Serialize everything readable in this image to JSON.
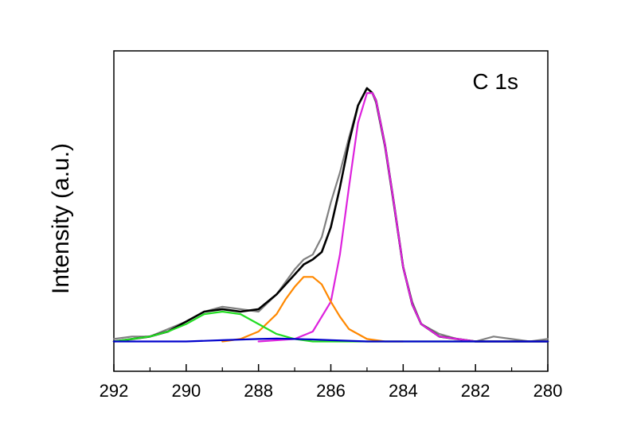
{
  "chart_data": {
    "type": "line",
    "title": "",
    "annotation": "C 1s",
    "xlabel": "",
    "ylabel": "Intensity (a.u.)",
    "xlim": [
      292,
      280
    ],
    "x_reversed": true,
    "ylim": [
      -0.12,
      1.17
    ],
    "x_ticks": [
      292,
      290,
      288,
      286,
      284,
      282,
      280
    ],
    "y_ticks_shown": false,
    "grid": false,
    "legend": "none",
    "series": [
      {
        "color": "#808080",
        "role": "measured",
        "x": [
          292.0,
          291.5,
          291.0,
          290.5,
          290.0,
          289.5,
          289.0,
          288.5,
          288.0,
          287.5,
          287.0,
          286.75,
          286.5,
          286.25,
          286.0,
          285.75,
          285.5,
          285.25,
          285.0,
          284.85,
          284.75,
          284.5,
          284.25,
          284.0,
          283.75,
          283.5,
          283.0,
          282.5,
          282.0,
          281.5,
          281.0,
          280.5,
          280.0
        ],
        "y": [
          0.01,
          0.02,
          0.02,
          0.05,
          0.08,
          0.12,
          0.14,
          0.13,
          0.12,
          0.19,
          0.29,
          0.33,
          0.35,
          0.42,
          0.56,
          0.68,
          0.82,
          0.95,
          1.02,
          1.0,
          0.96,
          0.78,
          0.54,
          0.3,
          0.16,
          0.07,
          0.03,
          0.01,
          0.0,
          0.02,
          0.01,
          0.0,
          0.01
        ]
      },
      {
        "color": "#000000",
        "role": "envelope",
        "x": [
          292.0,
          291.5,
          291.0,
          290.5,
          290.0,
          289.5,
          289.0,
          288.5,
          288.0,
          287.5,
          287.0,
          286.75,
          286.5,
          286.25,
          286.0,
          285.75,
          285.5,
          285.25,
          285.0,
          284.85,
          284.75,
          284.5,
          284.25,
          284.0,
          283.75,
          283.5,
          283.0,
          282.5,
          282.0,
          281.5,
          281.0,
          280.5,
          280.0
        ],
        "y": [
          0.0,
          0.01,
          0.02,
          0.04,
          0.08,
          0.12,
          0.13,
          0.12,
          0.13,
          0.19,
          0.27,
          0.31,
          0.33,
          0.36,
          0.46,
          0.62,
          0.8,
          0.95,
          1.02,
          1.0,
          0.97,
          0.79,
          0.55,
          0.3,
          0.15,
          0.07,
          0.02,
          0.01,
          0.0,
          0.0,
          0.0,
          0.0,
          0.0
        ]
      },
      {
        "color": "#dd22dd",
        "role": "fit-component",
        "x": [
          288.0,
          287.0,
          286.5,
          286.0,
          285.75,
          285.5,
          285.25,
          285.0,
          284.85,
          284.75,
          284.5,
          284.25,
          284.0,
          283.75,
          283.5,
          283.0,
          282.5,
          282.0,
          281.0,
          280.0
        ],
        "y": [
          0.0,
          0.01,
          0.04,
          0.16,
          0.35,
          0.62,
          0.88,
          1.0,
          1.0,
          0.97,
          0.79,
          0.55,
          0.3,
          0.15,
          0.07,
          0.02,
          0.01,
          0.0,
          0.0,
          0.0
        ]
      },
      {
        "color": "#ff8800",
        "role": "fit-component",
        "x": [
          289.0,
          288.5,
          288.0,
          287.5,
          287.25,
          287.0,
          286.75,
          286.5,
          286.25,
          286.0,
          285.75,
          285.5,
          285.0,
          284.5,
          284.0
        ],
        "y": [
          0.0,
          0.01,
          0.04,
          0.11,
          0.17,
          0.22,
          0.26,
          0.26,
          0.23,
          0.16,
          0.1,
          0.05,
          0.01,
          0.0,
          0.0
        ]
      },
      {
        "color": "#22dd22",
        "role": "fit-component",
        "x": [
          292.0,
          291.5,
          291.0,
          290.5,
          290.0,
          289.5,
          289.0,
          288.5,
          288.0,
          287.5,
          287.0,
          286.5,
          286.0,
          285.0,
          284.0,
          283.0,
          282.0,
          281.0,
          280.0
        ],
        "y": [
          0.0,
          0.01,
          0.02,
          0.04,
          0.07,
          0.11,
          0.12,
          0.11,
          0.07,
          0.03,
          0.01,
          0.0,
          0.0,
          0.0,
          0.0,
          0.0,
          0.0,
          0.0,
          0.0
        ]
      },
      {
        "color": "#0000cc",
        "role": "fit-component",
        "x": [
          292.0,
          290.0,
          289.0,
          288.0,
          287.5,
          287.0,
          286.5,
          286.0,
          285.0,
          284.0,
          282.0,
          280.0
        ],
        "y": [
          0.0,
          0.0,
          0.005,
          0.01,
          0.012,
          0.01,
          0.008,
          0.005,
          0.0,
          0.0,
          0.0,
          0.0
        ]
      }
    ]
  }
}
